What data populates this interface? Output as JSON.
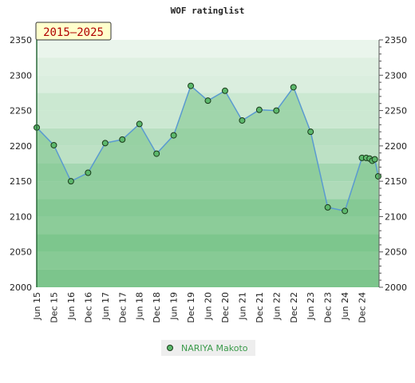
{
  "chart_data": {
    "type": "area",
    "title": "WOF ratinglist",
    "badge": "2015—2025",
    "x_tick_labels": [
      "Jun 15",
      "Dec 15",
      "Jun 16",
      "Dec 16",
      "Jun 17",
      "Dec 17",
      "Jun 18",
      "Dec 18",
      "Jun 19",
      "Dec 19",
      "Jun 20",
      "Dec 20",
      "Jun 21",
      "Dec 21",
      "Jun 22",
      "Dec 22",
      "Jun 23",
      "Dec 23",
      "Jun 24",
      "Dec 24"
    ],
    "ylim": [
      2000,
      2350
    ],
    "y_ticks": [
      2000,
      2050,
      2100,
      2150,
      2200,
      2250,
      2300,
      2350
    ],
    "series": [
      {
        "name": "NARIYA Makoto",
        "points": [
          {
            "x": 0,
            "y": 2226
          },
          {
            "x": 1,
            "y": 2201
          },
          {
            "x": 2,
            "y": 2150
          },
          {
            "x": 3,
            "y": 2162
          },
          {
            "x": 4,
            "y": 2204
          },
          {
            "x": 5,
            "y": 2209
          },
          {
            "x": 6,
            "y": 2231
          },
          {
            "x": 7,
            "y": 2189
          },
          {
            "x": 8,
            "y": 2215
          },
          {
            "x": 9,
            "y": 2285
          },
          {
            "x": 10,
            "y": 2264
          },
          {
            "x": 11,
            "y": 2278
          },
          {
            "x": 12,
            "y": 2236
          },
          {
            "x": 13,
            "y": 2251
          },
          {
            "x": 14,
            "y": 2250
          },
          {
            "x": 15,
            "y": 2283
          },
          {
            "x": 16,
            "y": 2220
          },
          {
            "x": 17,
            "y": 2113
          },
          {
            "x": 18,
            "y": 2108
          },
          {
            "x": 19,
            "y": 2183
          },
          {
            "x": 19.25,
            "y": 2183
          },
          {
            "x": 19.45,
            "y": 2182
          },
          {
            "x": 19.6,
            "y": 2179
          },
          {
            "x": 19.75,
            "y": 2181
          },
          {
            "x": 19.95,
            "y": 2157
          }
        ]
      }
    ],
    "colors": {
      "area_fill": "#7cc48a",
      "line": "#5a9ad0",
      "marker_fill": "#5cb86c",
      "marker_stroke": "#1a3a1a",
      "band_dark": "#7cc68f",
      "band_light": "#f2f8f2",
      "badge_bg": "#ffffcc",
      "badge_text": "#b00000",
      "legend_text": "#3a9a4a"
    },
    "legend_position": "bottom-center"
  }
}
